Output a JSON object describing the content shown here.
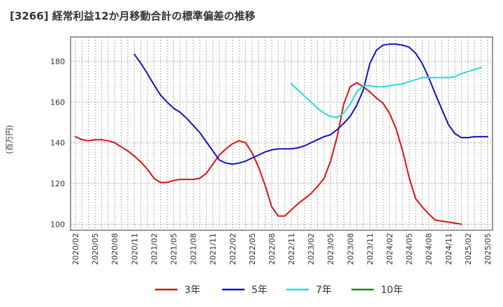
{
  "chart_data": {
    "type": "line",
    "title": "[3266]  経常利益12か月移動合計の標準偏差の推移",
    "ylabel": "(百万円)",
    "xlabel": "",
    "ylim": [
      97,
      192
    ],
    "yticks": [
      100,
      120,
      140,
      160,
      180
    ],
    "x_start": "2020/02",
    "x_end": "2025/05",
    "xtick_labels": [
      "2020/02",
      "2020/05",
      "2020/08",
      "2020/11",
      "2021/02",
      "2021/05",
      "2021/08",
      "2021/11",
      "2022/02",
      "2022/05",
      "2022/08",
      "2022/11",
      "2023/02",
      "2023/05",
      "2023/08",
      "2023/11",
      "2024/02",
      "2024/05",
      "2024/08",
      "2024/11",
      "2025/02",
      "2025/05"
    ],
    "grid": true,
    "legend_position": "bottom",
    "series": [
      {
        "name": "3年",
        "color": "#dd1111",
        "start": "2020/02",
        "values": [
          143,
          141.5,
          141,
          141.5,
          141.5,
          141,
          140,
          138,
          136,
          133.5,
          130.5,
          127,
          122.5,
          120.5,
          120.5,
          121.5,
          122,
          122,
          122,
          122.5,
          125,
          129.5,
          134,
          137,
          139.5,
          141,
          140,
          135,
          128,
          119,
          108.5,
          104,
          104,
          107,
          110,
          112.5,
          115,
          118.5,
          122.5,
          131,
          143,
          159,
          167.5,
          169.5,
          167.5,
          165,
          162,
          159.5,
          154.5,
          147,
          136,
          123,
          112.5,
          108.5,
          105,
          102,
          101.5,
          101,
          100.5,
          100
        ]
      },
      {
        "name": "5年",
        "color": "#1111cc",
        "start": "2020/11",
        "values": [
          183.5,
          179,
          174,
          168.5,
          163.5,
          160,
          157,
          155,
          152,
          148.5,
          145,
          140.5,
          136,
          131.5,
          130,
          129.5,
          130,
          131,
          132.5,
          134,
          135.5,
          136.5,
          137,
          137,
          137,
          137.5,
          138.5,
          140,
          141.5,
          143,
          144,
          146.5,
          149.5,
          153,
          158.5,
          166,
          179,
          185.5,
          188,
          188.5,
          188.5,
          188,
          187,
          184,
          179,
          172,
          164,
          156.5,
          149,
          144.5,
          142.5,
          142.5,
          143,
          143,
          143
        ]
      },
      {
        "name": "7年",
        "color": "#22dddd",
        "start": "2022/11",
        "values": [
          169,
          166,
          163,
          160,
          157,
          154.5,
          153,
          152.5,
          154.5,
          159,
          165,
          168,
          168,
          167.5,
          167.5,
          168,
          168.5,
          169,
          170,
          171,
          172,
          172,
          172,
          172,
          172,
          172.5,
          174,
          175,
          176,
          177
        ]
      },
      {
        "name": "10年",
        "color": "#228822",
        "start": "2025/05",
        "values": []
      }
    ]
  }
}
